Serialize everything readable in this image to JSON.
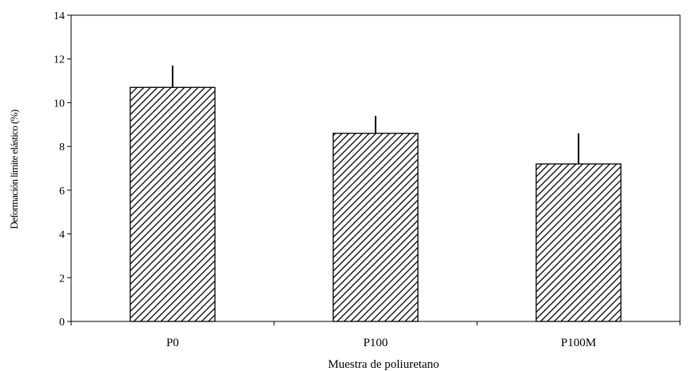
{
  "chart_data": {
    "type": "bar",
    "title": "",
    "xlabel": "Muestra de poliuretano",
    "ylabel": "Deformación límite elástico (%)",
    "categories": [
      "P0",
      "P100",
      "P100M"
    ],
    "values": [
      10.7,
      8.6,
      7.2
    ],
    "error_upper": [
      1.0,
      0.8,
      1.4
    ],
    "ylim": [
      0,
      14
    ],
    "yticks": [
      "0",
      "2",
      "4",
      "6",
      "8",
      "10",
      "12",
      "14"
    ],
    "grid": false,
    "legend": "none",
    "bar_fill": "diagonal-hatch",
    "colors": {
      "bar_stroke": "#000000",
      "hatch": "#000000",
      "background": "#ffffff"
    }
  }
}
